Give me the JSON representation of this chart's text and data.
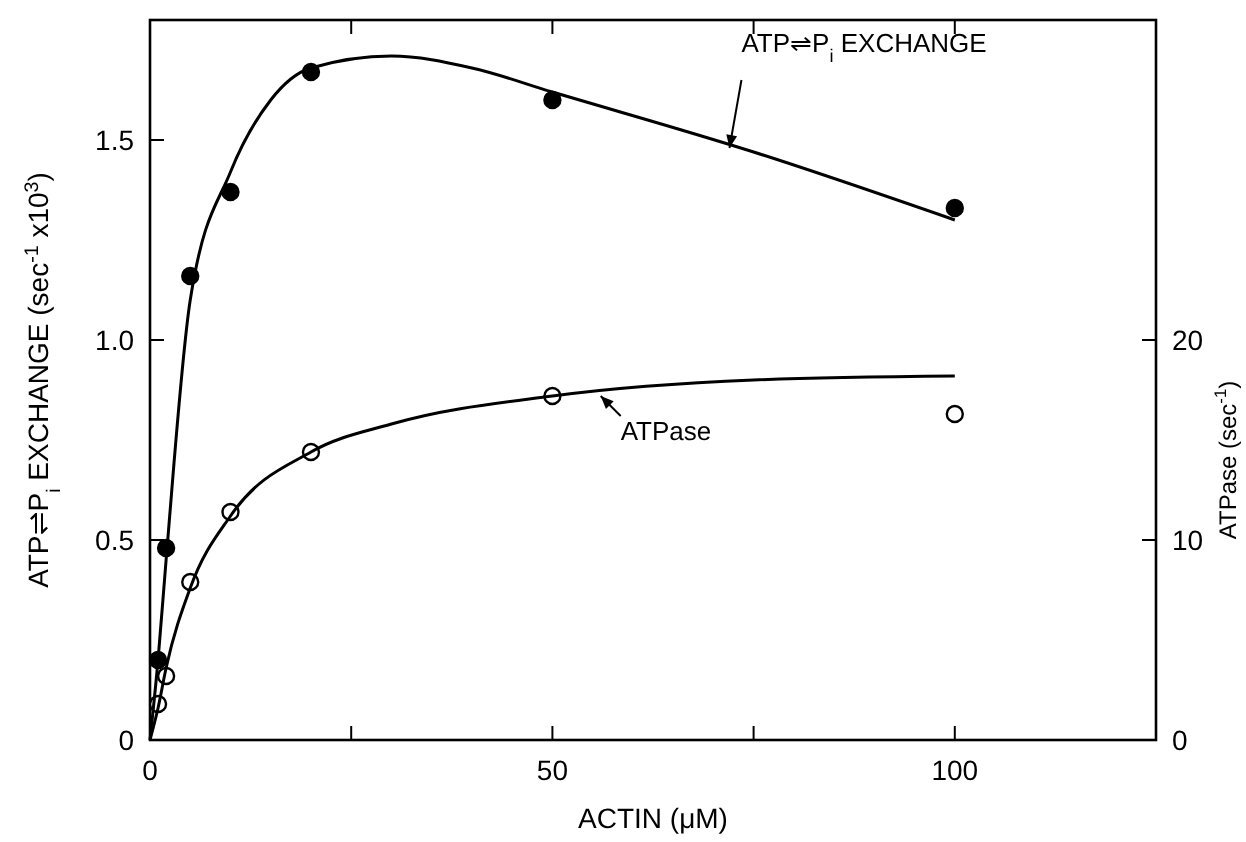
{
  "chart_data": {
    "type": "scatter",
    "xlabel": "ACTIN (μM)",
    "ylabel": "ATP⇌P$_{i}$ EXCHANGE (sec$^{-1}$ x10$^{3}$)",
    "y2label": "ATPase (sec$^{-1}$)",
    "xlim": [
      0,
      125
    ],
    "xticks": [
      0,
      {
        "value": 25,
        "label": null
      },
      50,
      {
        "value": 75,
        "label": null
      },
      100
    ],
    "ylim": [
      0,
      1.8
    ],
    "yticks": [
      0,
      0.5,
      {
        "value": 1,
        "label": "1.0"
      },
      1.5
    ],
    "y2lim": [
      0,
      36
    ],
    "y2ticks": [
      0,
      10,
      20
    ],
    "grid": false,
    "series": [
      {
        "marker": "circle",
        "color": "#000000",
        "x": [
          1,
          2,
          5,
          10,
          20,
          50,
          100
        ],
        "values": [
          0.2,
          0.48,
          1.16,
          1.37,
          1.67,
          1.6,
          1.33
        ]
      },
      {
        "marker": "circle",
        "axis": "y2",
        "color": "#000000",
        "x": [
          1,
          2,
          5,
          10,
          20,
          50,
          100
        ],
        "values": [
          1.8,
          3.2,
          7.9,
          11.4,
          14.4,
          17.2,
          16.3
        ]
      },
      {
        "type": "line",
        "marker": "none",
        "color": "#000000",
        "x": [
          0,
          1,
          2,
          5,
          10,
          15,
          20,
          30,
          40,
          50,
          75,
          100
        ],
        "values": [
          0,
          0.2,
          0.45,
          1.1,
          1.42,
          1.6,
          1.68,
          1.71,
          1.68,
          1.62,
          1.47,
          1.3
        ]
      },
      {
        "type": "line",
        "marker": "none",
        "axis": "y2",
        "color": "#000000",
        "x": [
          0,
          1,
          2,
          5,
          10,
          20,
          30,
          50,
          75,
          100
        ],
        "values": [
          0,
          1.6,
          3.6,
          7.6,
          11.2,
          14.4,
          15.8,
          17.2,
          18,
          18.2
        ]
      }
    ],
    "annotations": [
      {
        "text": "ATP⇌P$_{i}$ EXCHANGE",
        "x": 72,
        "y": 1.48
      },
      {
        "text": "ATPase",
        "x": 56,
        "y": 0.86
      }
    ]
  }
}
